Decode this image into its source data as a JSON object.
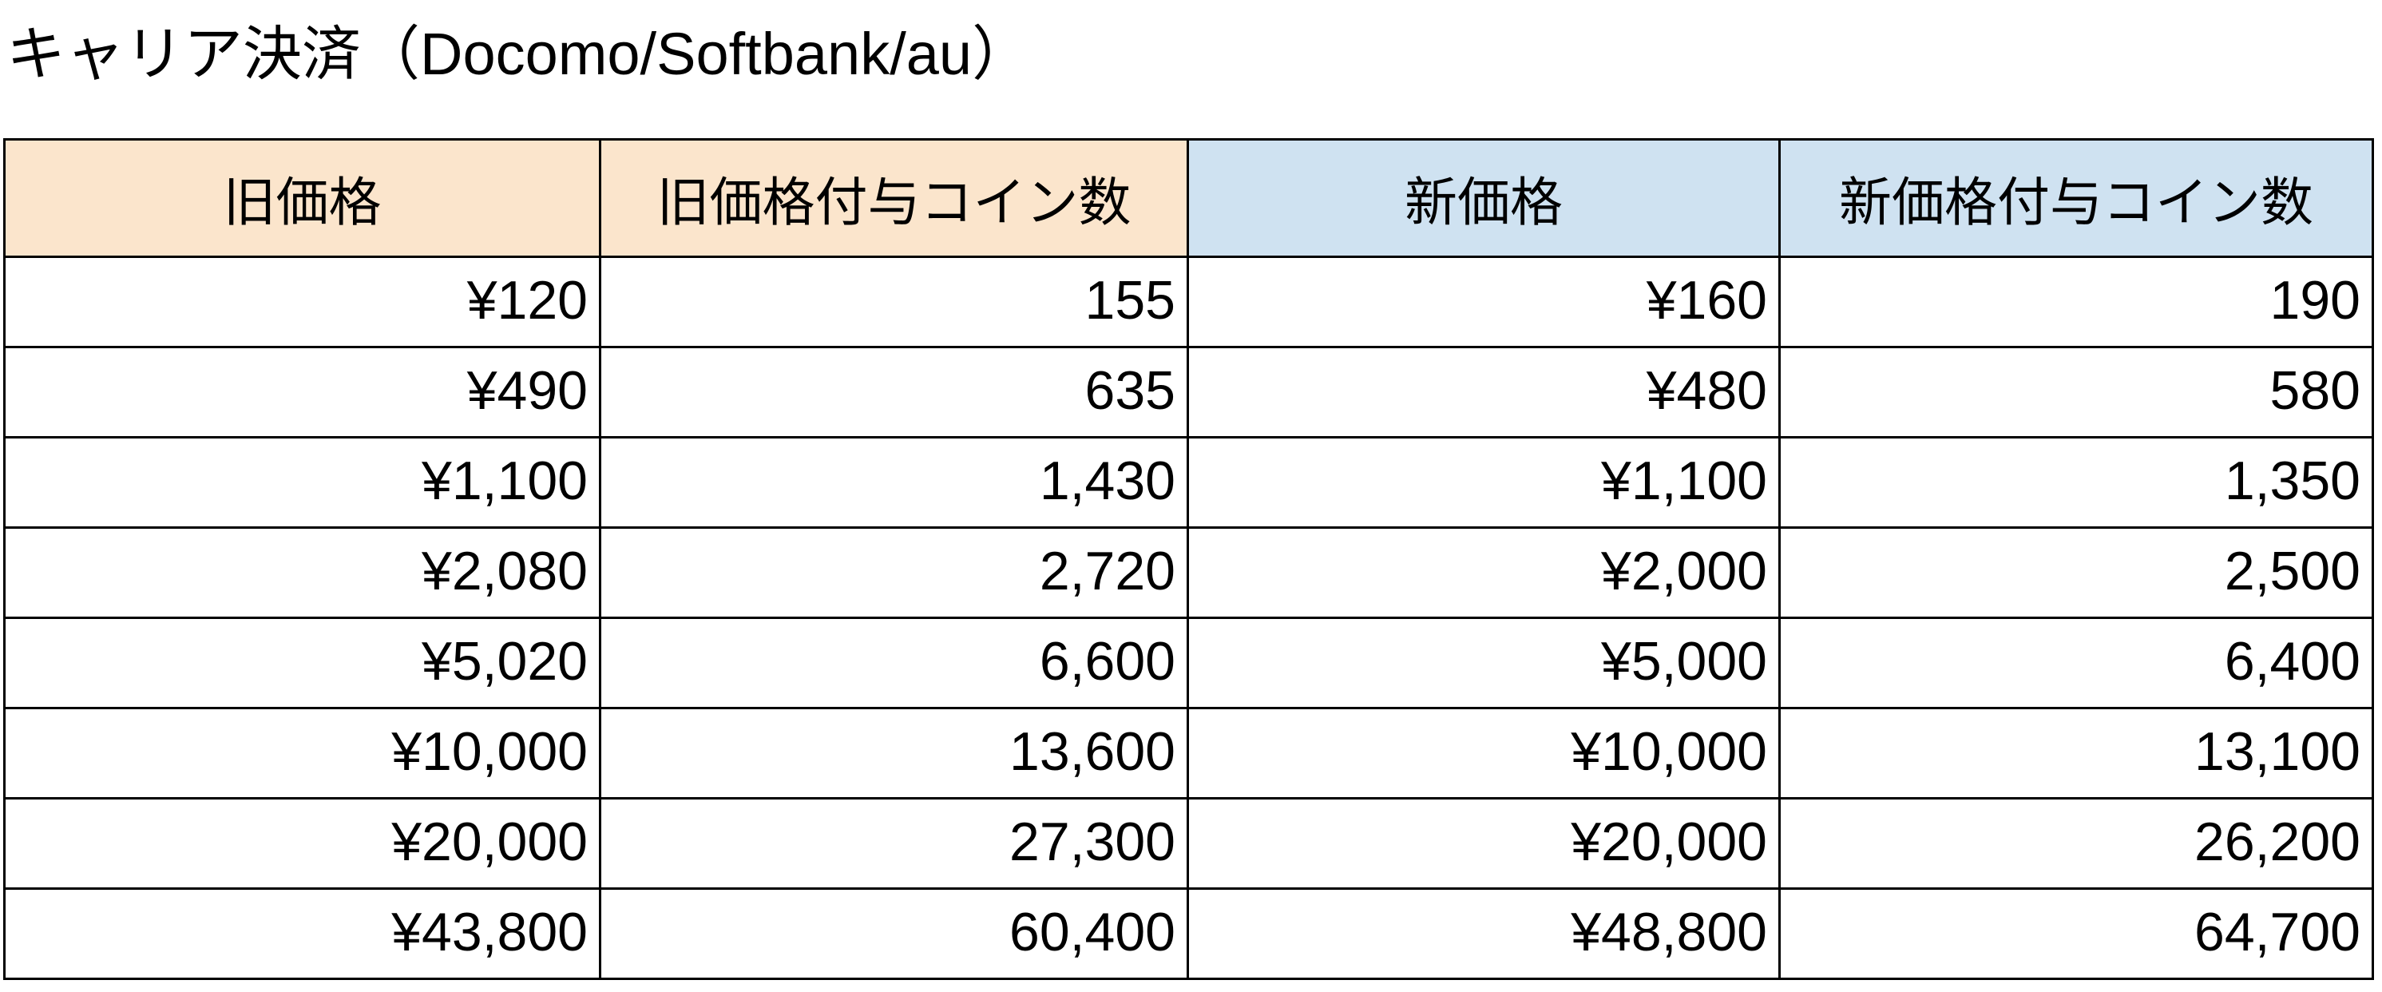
{
  "title": "キャリア決済（Docomo/Softbank/au）",
  "colors": {
    "old_group_header_bg": "#FBE5CC",
    "new_group_header_bg": "#CFE2F1",
    "border": "#000000",
    "text": "#000000",
    "page_bg": "#FFFFFF"
  },
  "table": {
    "columns": [
      {
        "name": "old-price",
        "label": "旧価格",
        "group": "old"
      },
      {
        "name": "old-coins",
        "label": "旧価格付与コイン数",
        "group": "old"
      },
      {
        "name": "new-price",
        "label": "新価格",
        "group": "new"
      },
      {
        "name": "new-coins",
        "label": "新価格付与コイン数",
        "group": "new"
      }
    ],
    "rows": [
      [
        "¥120",
        "155",
        "¥160",
        "190"
      ],
      [
        "¥490",
        "635",
        "¥480",
        "580"
      ],
      [
        "¥1,100",
        "1,430",
        "¥1,100",
        "1,350"
      ],
      [
        "¥2,080",
        "2,720",
        "¥2,000",
        "2,500"
      ],
      [
        "¥5,020",
        "6,600",
        "¥5,000",
        "6,400"
      ],
      [
        "¥10,000",
        "13,600",
        "¥10,000",
        "13,100"
      ],
      [
        "¥20,000",
        "27,300",
        "¥20,000",
        "26,200"
      ],
      [
        "¥43,800",
        "60,400",
        "¥48,800",
        "64,700"
      ]
    ]
  }
}
